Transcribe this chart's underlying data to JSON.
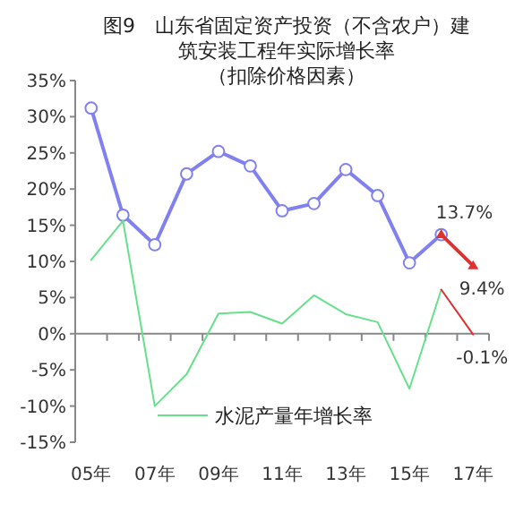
{
  "chart_data": {
    "type": "line",
    "title": "图9　山东省固定资产投资（不含农户）建筑安装工程年实际增长率",
    "subtitle": "（扣除价格因素）",
    "categories": [
      "05年",
      null,
      "07年",
      null,
      "09年",
      null,
      "11年",
      null,
      "13年",
      null,
      "15年",
      null,
      "17年"
    ],
    "series": [
      {
        "color": "#8080f0",
        "marker": "circle",
        "values": [
          31.2,
          16.4,
          12.3,
          22.1,
          25.2,
          23.2,
          17.0,
          18.0,
          22.7,
          19.1,
          9.8,
          13.7,
          null
        ]
      },
      {
        "color": "#e03030",
        "marker": "triangle",
        "values": [
          null,
          null,
          null,
          null,
          null,
          null,
          null,
          null,
          null,
          null,
          null,
          13.7,
          9.4
        ],
        "value_labels": [
          null,
          null,
          null,
          null,
          null,
          null,
          null,
          null,
          null,
          null,
          null,
          "13.7%",
          "9.4%"
        ]
      },
      {
        "name": "水泥产量年增长率",
        "color": "#66e08a",
        "marker": "none",
        "values": [
          10.2,
          15.6,
          -10.0,
          -5.6,
          2.8,
          3.0,
          1.4,
          5.3,
          2.7,
          1.6,
          -7.6,
          6.1,
          null
        ]
      },
      {
        "color": "#e03030",
        "marker": "none",
        "values": [
          null,
          null,
          null,
          null,
          null,
          null,
          null,
          null,
          null,
          null,
          null,
          6.1,
          -0.1
        ],
        "value_labels": [
          null,
          null,
          null,
          null,
          null,
          null,
          null,
          null,
          null,
          null,
          null,
          null,
          "-0.1%"
        ]
      }
    ],
    "ylim": [
      -15,
      35
    ],
    "yticks": [
      {
        "value": -15,
        "label": "-15%"
      },
      {
        "value": -10,
        "label": "-10%"
      },
      {
        "value": -5,
        "label": "-5%"
      },
      {
        "value": 0,
        "label": "0%"
      },
      {
        "value": 5,
        "label": "5%"
      },
      {
        "value": 10,
        "label": "10%"
      },
      {
        "value": 15,
        "label": "15%"
      },
      {
        "value": 20,
        "label": "20%"
      },
      {
        "value": 25,
        "label": "25%"
      },
      {
        "value": 30,
        "label": "30%"
      },
      {
        "value": 35,
        "label": "35%"
      }
    ],
    "legend": "bottom",
    "line_style": "solid"
  }
}
